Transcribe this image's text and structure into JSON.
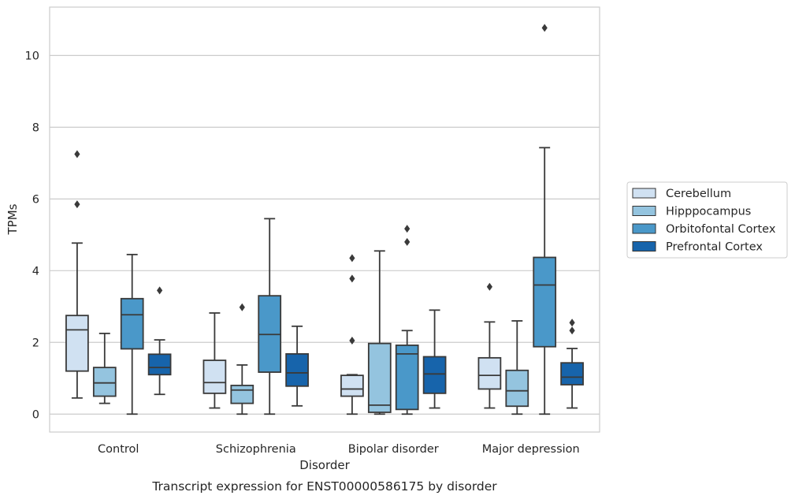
{
  "chart_data": {
    "type": "box",
    "title": "",
    "caption": "Transcript expression for ENST00000586175 by disorder",
    "xlabel": "Disorder",
    "ylabel": "TPMs",
    "ylim": [
      -0.5,
      11.35
    ],
    "yticks": [
      0,
      2,
      4,
      6,
      8,
      10
    ],
    "grid": "horizontal",
    "legend_position": "right",
    "categories": [
      "Control",
      "Schizophrenia",
      "Bipolar disorder",
      "Major depression"
    ],
    "series": [
      {
        "name": "Cerebellum",
        "color": "#d0e1f2",
        "boxes": [
          {
            "whislo": 0.45,
            "q1": 1.2,
            "med": 2.35,
            "q3": 2.75,
            "whishi": 4.77,
            "fliers": [
              5.85,
              7.25
            ]
          },
          {
            "whislo": 0.17,
            "q1": 0.58,
            "med": 0.88,
            "q3": 1.5,
            "whishi": 2.82,
            "fliers": []
          },
          {
            "whislo": 0.0,
            "q1": 0.5,
            "med": 0.7,
            "q3": 1.08,
            "whishi": 1.1,
            "fliers": [
              2.05,
              3.78,
              4.35
            ]
          },
          {
            "whislo": 0.17,
            "q1": 0.7,
            "med": 1.08,
            "q3": 1.57,
            "whishi": 2.57,
            "fliers": [
              3.55
            ]
          }
        ]
      },
      {
        "name": "Hipppocampus",
        "color": "#94c4df",
        "boxes": [
          {
            "whislo": 0.3,
            "q1": 0.5,
            "med": 0.87,
            "q3": 1.3,
            "whishi": 2.25,
            "fliers": []
          },
          {
            "whislo": 0.0,
            "q1": 0.3,
            "med": 0.67,
            "q3": 0.8,
            "whishi": 1.37,
            "fliers": [
              2.98
            ]
          },
          {
            "whislo": 0.0,
            "q1": 0.05,
            "med": 0.25,
            "q3": 1.97,
            "whishi": 4.55,
            "fliers": []
          },
          {
            "whislo": 0.0,
            "q1": 0.22,
            "med": 0.65,
            "q3": 1.22,
            "whishi": 2.6,
            "fliers": []
          }
        ]
      },
      {
        "name": "Orbitofontal Cortex",
        "color": "#4a98c9",
        "boxes": [
          {
            "whislo": 0.0,
            "q1": 1.82,
            "med": 2.77,
            "q3": 3.22,
            "whishi": 4.45,
            "fliers": []
          },
          {
            "whislo": 0.0,
            "q1": 1.17,
            "med": 2.22,
            "q3": 3.3,
            "whishi": 5.45,
            "fliers": []
          },
          {
            "whislo": 0.0,
            "q1": 0.13,
            "med": 1.68,
            "q3": 1.92,
            "whishi": 2.33,
            "fliers": [
              4.8,
              5.17
            ]
          },
          {
            "whislo": 0.0,
            "q1": 1.88,
            "med": 3.6,
            "q3": 4.37,
            "whishi": 7.43,
            "fliers": [
              10.77
            ]
          }
        ]
      },
      {
        "name": "Prefrontal Cortex",
        "color": "#1764ab",
        "boxes": [
          {
            "whislo": 0.55,
            "q1": 1.1,
            "med": 1.3,
            "q3": 1.67,
            "whishi": 2.07,
            "fliers": [
              3.45
            ]
          },
          {
            "whislo": 0.23,
            "q1": 0.78,
            "med": 1.15,
            "q3": 1.68,
            "whishi": 2.45,
            "fliers": []
          },
          {
            "whislo": 0.17,
            "q1": 0.58,
            "med": 1.12,
            "q3": 1.6,
            "whishi": 2.9,
            "fliers": []
          },
          {
            "whislo": 0.17,
            "q1": 0.82,
            "med": 1.03,
            "q3": 1.43,
            "whishi": 1.83,
            "fliers": [
              2.33,
              2.55
            ]
          }
        ]
      }
    ]
  }
}
